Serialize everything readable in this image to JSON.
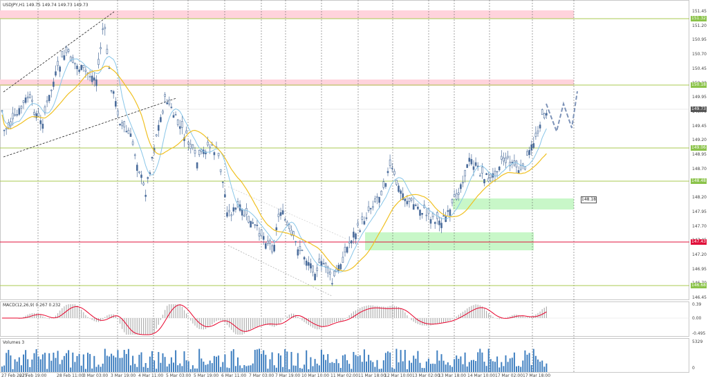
{
  "symbol_header": "USDJPY,H1  149.75 149.74 149.73 149.73",
  "macd_label": "MACD(12,26,9) 0.267 0.232",
  "volumes_label": "Volumes 3",
  "price_axis": [
    "151.45",
    "151.20",
    "150.95",
    "150.70",
    "150.45",
    "150.20",
    "149.95",
    "149.70",
    "149.45",
    "149.20",
    "148.95",
    "148.70",
    "148.45",
    "148.20",
    "147.95",
    "147.70",
    "147.45",
    "147.20",
    "146.95",
    "146.70",
    "146.45"
  ],
  "price_tags": [
    {
      "text": "151.32",
      "color": "#8bc34a"
    },
    {
      "text": "150.18",
      "color": "#8bc34a"
    },
    {
      "text": "149.73",
      "color": "#555555"
    },
    {
      "text": "149.06",
      "color": "#8bc34a"
    },
    {
      "text": "148.48",
      "color": "#8bc34a"
    },
    {
      "text": "147.43",
      "color": "#e0103a"
    },
    {
      "text": "146.68",
      "color": "#8bc34a"
    }
  ],
  "macd_axis": [
    "0.39",
    "0.00",
    "-0.495"
  ],
  "volume_axis": [
    "5329",
    "0"
  ],
  "time_axis": [
    "27 Feb 2025",
    "27 Feb 19:00",
    "28 Feb 11:00",
    "3 Mar 03:00",
    "3 Mar 19:00",
    "4 Mar 11:00",
    "5 Mar 03:00",
    "5 Mar 19:00",
    "6 Mar 11:00",
    "7 Mar 03:00",
    "7 Mar 19:00",
    "10 Mar 10:00",
    "11 Mar 02:00",
    "11 Mar 18:00",
    "12 Mar 10:00",
    "13 Mar 02:00",
    "13 Mar 18:00",
    "14 Mar 10:00",
    "17 Mar 02:00",
    "17 Mar 18:00"
  ],
  "target_marker": "148.18",
  "colors": {
    "candle": "#4a6c9b",
    "ma_fast": "#87c5e8",
    "ma_slow": "#f0c020",
    "macd_signal": "#e8002a",
    "macd_hist": "#b0b0b0",
    "volume": "#3f7fc0",
    "resistance_zone": "#ffd3dc",
    "support_zone": "#c8f7c8",
    "level_green": "#a8c850",
    "level_red": "#e0103a"
  }
}
